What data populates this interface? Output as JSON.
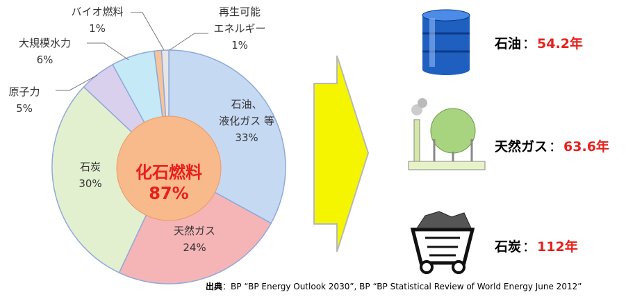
{
  "chart_data": {
    "type": "pie",
    "categories": [
      "石油、\n液化ガス 等",
      "天然ガス",
      "石炭",
      "原子力",
      "大規模水力",
      "バイオ燃料",
      "再生可能\nエネルギー"
    ],
    "values": [
      33,
      24,
      30,
      5,
      6,
      1,
      1
    ],
    "value_labels": [
      "33%",
      "24%",
      "30%",
      "5%",
      "6%",
      "1%",
      "1%"
    ],
    "colors": [
      "#c6d9f3",
      "#f5b5b7",
      "#e3f0d0",
      "#d8d0ec",
      "#c5e9f7",
      "#f7c39a",
      "#e6e6e6"
    ],
    "center_title": "化石燃料",
    "center_label": "87%",
    "center_color": "#f8b98b"
  },
  "reserves": [
    {
      "name": "石油",
      "separator": "：",
      "label": "54.2年"
    },
    {
      "name": "天然ガス",
      "separator": "：",
      "label": "63.6年"
    },
    {
      "name": "石炭",
      "separator": "：",
      "label": "112年"
    }
  ],
  "source_label": "出典",
  "source": "：BP “BP Energy Outlook 2030”, BP “BP Statistical Review of World Energy June 2012”"
}
